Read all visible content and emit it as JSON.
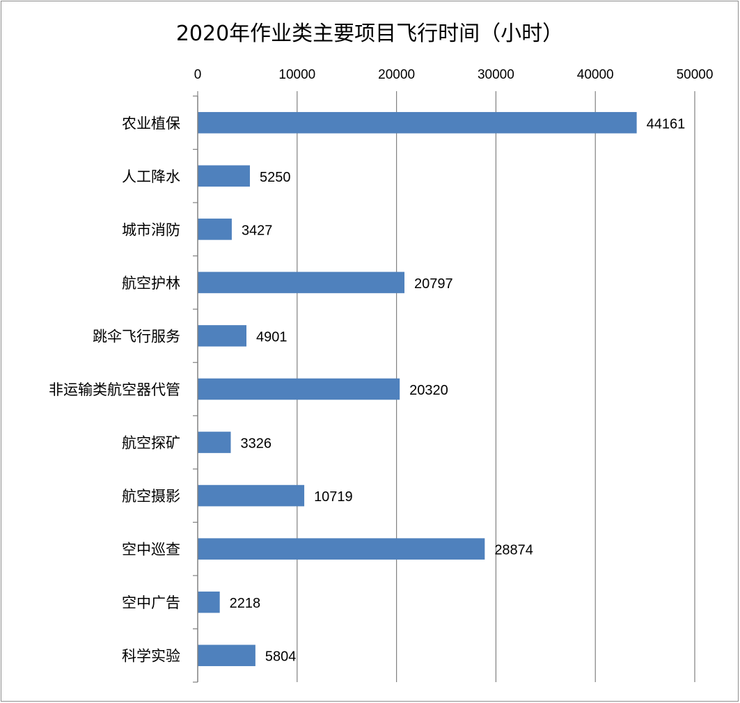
{
  "chart_data": {
    "type": "bar",
    "orientation": "horizontal",
    "title": "2020年作业类主要项目飞行时间（小时）",
    "categories": [
      "农业植保",
      "人工降水",
      "城市消防",
      "航空护林",
      "跳伞飞行服务",
      "非运输类航空器代管",
      "航空探矿",
      "航空摄影",
      "空中巡查",
      "空中广告",
      "科学实验"
    ],
    "values": [
      44161,
      5250,
      3427,
      20797,
      4901,
      20320,
      3326,
      10719,
      28874,
      2218,
      5804
    ],
    "xlim": [
      0,
      50000
    ],
    "x_ticks": [
      0,
      10000,
      20000,
      30000,
      40000,
      50000
    ],
    "x_axis_position": "top",
    "grid": "vertical",
    "data_labels": true,
    "legend": "none",
    "xlabel": "",
    "ylabel": "",
    "bar_color": "#4f81bd",
    "grid_color": "#808080"
  }
}
